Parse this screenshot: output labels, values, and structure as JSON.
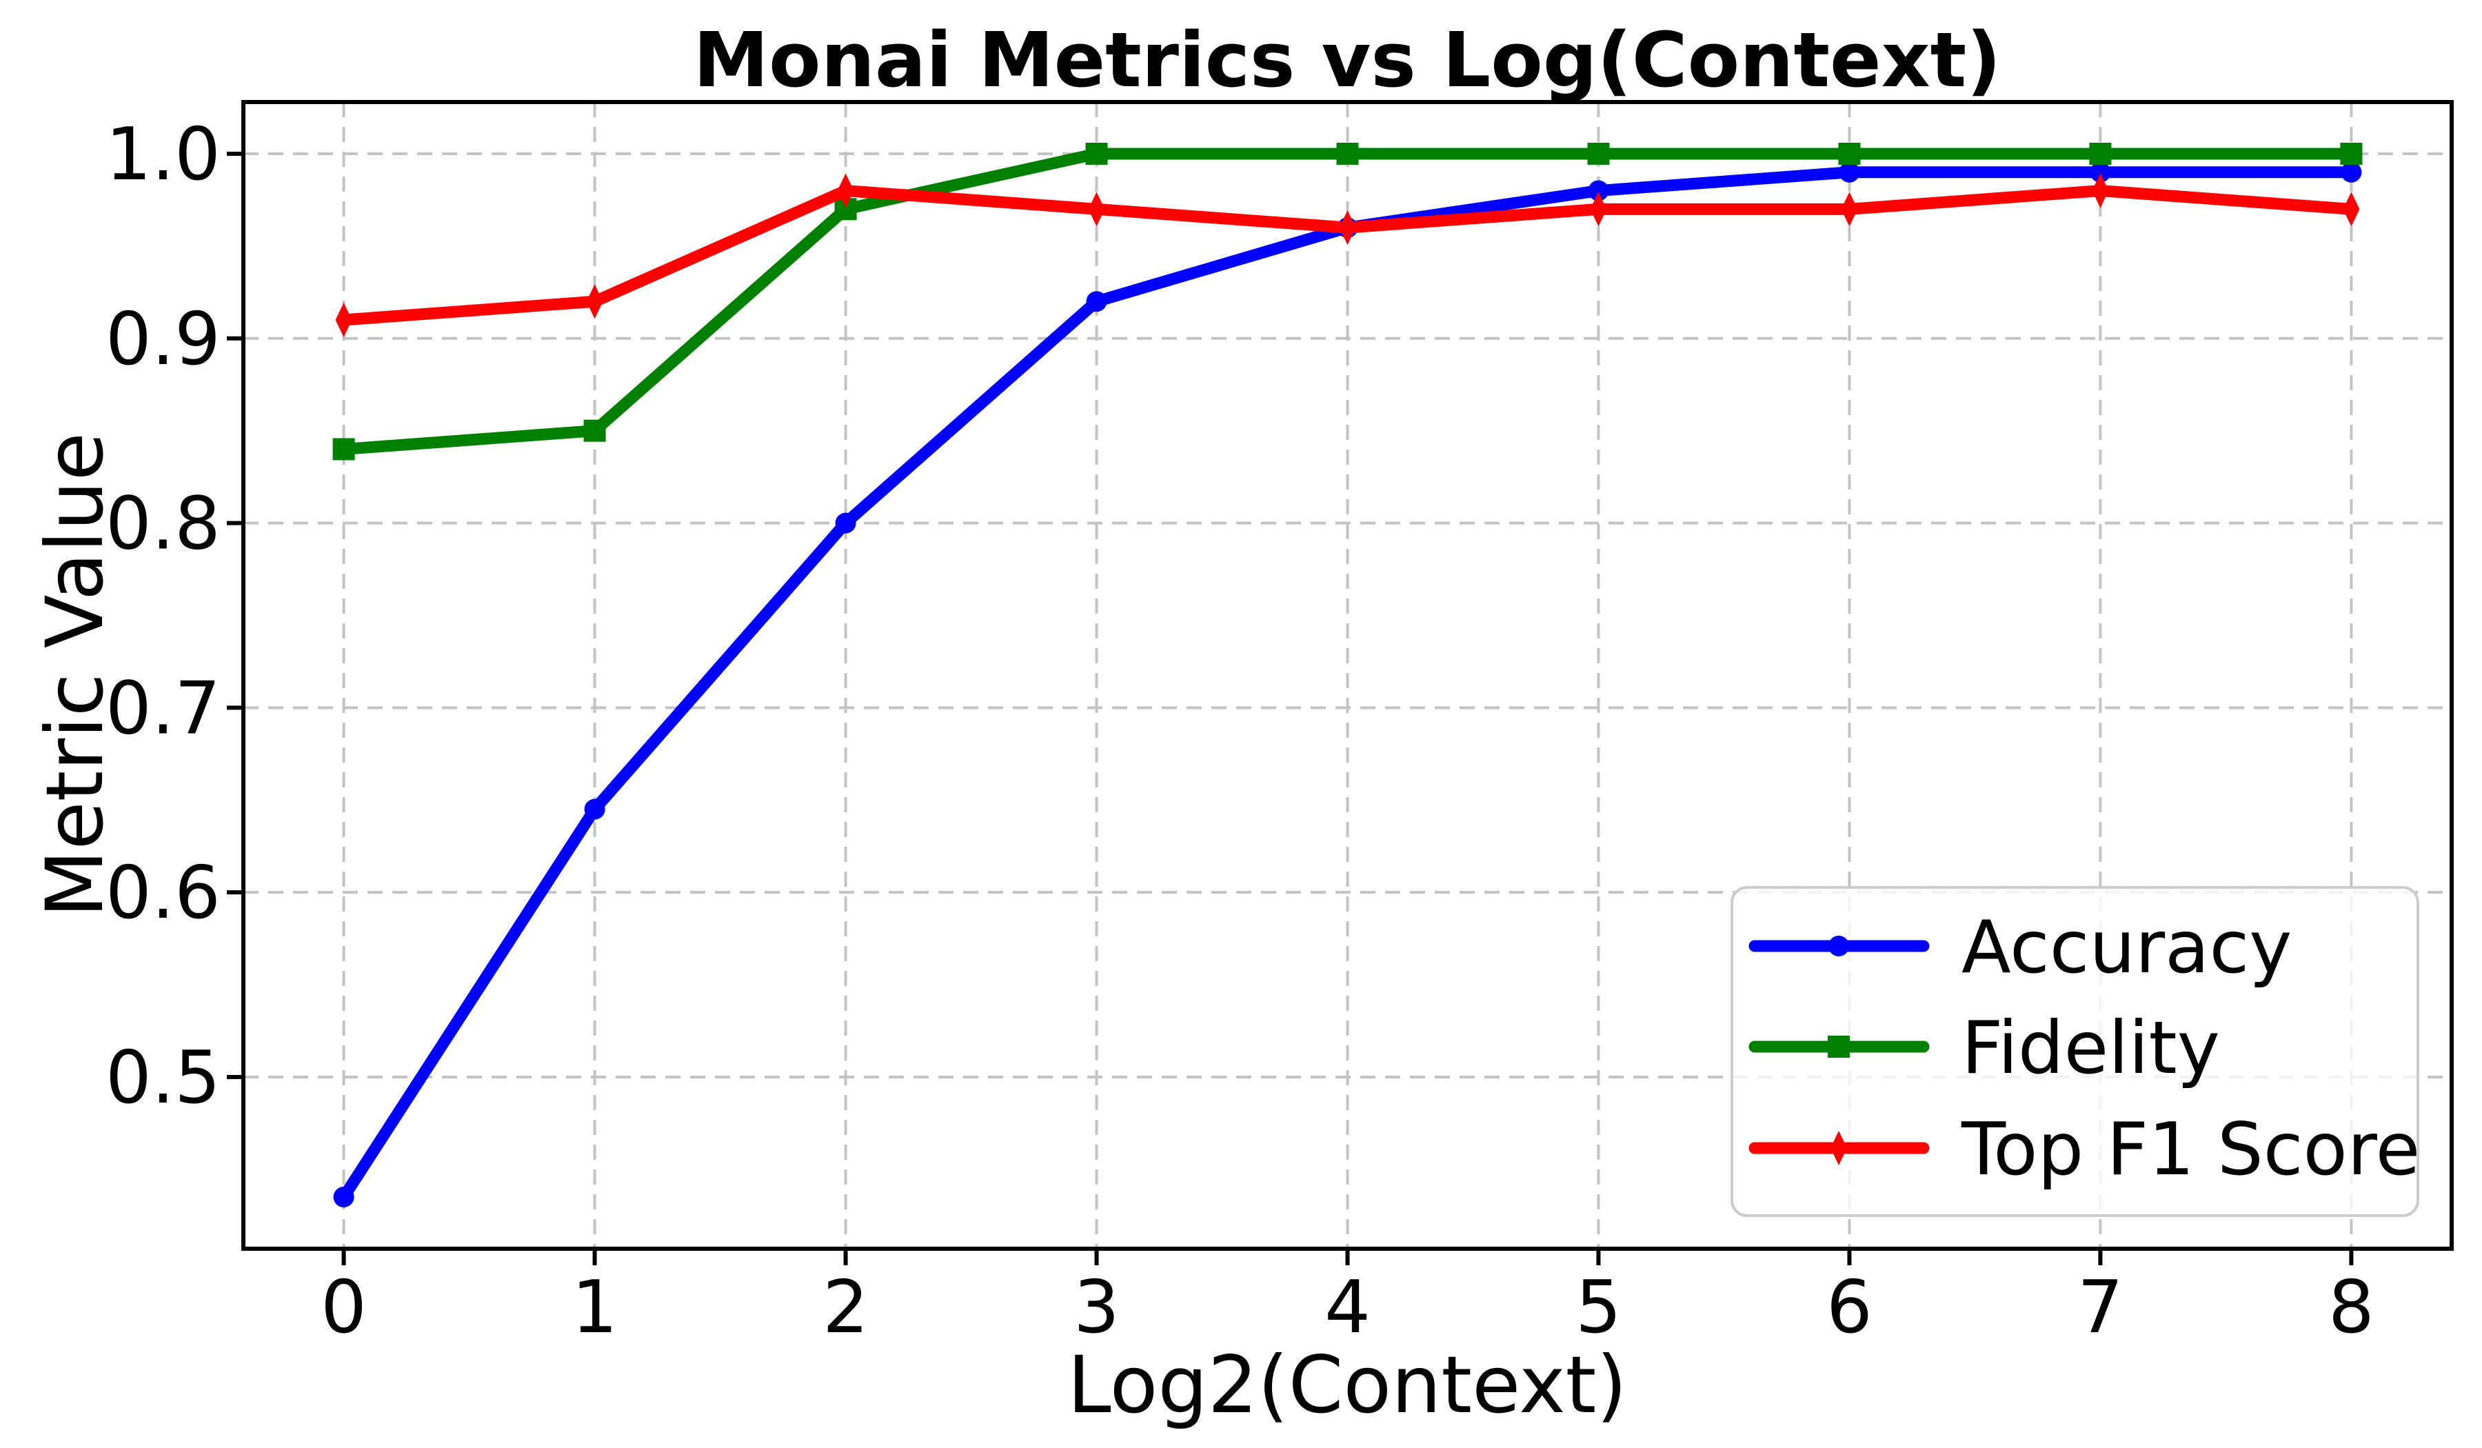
{
  "chart_data": {
    "type": "line",
    "title": "Monai Metrics vs Log(Context)",
    "xlabel": "Log2(Context)",
    "ylabel": "Metric Value",
    "x": [
      0,
      1,
      2,
      3,
      4,
      5,
      6,
      7,
      8
    ],
    "xtick_labels": [
      "0",
      "1",
      "2",
      "3",
      "4",
      "5",
      "6",
      "7",
      "8"
    ],
    "ytick_values": [
      0.5,
      0.6,
      0.7,
      0.8,
      0.9,
      1.0
    ],
    "ytick_labels": [
      "0.5",
      "0.6",
      "0.7",
      "0.8",
      "0.9",
      "1.0"
    ],
    "xlim": [
      -0.4,
      8.4
    ],
    "ylim": [
      0.407,
      1.028
    ],
    "grid": true,
    "legend_position": "lower right",
    "series": [
      {
        "name": "Accuracy",
        "color": "#0000ff",
        "marker": "circle",
        "values": [
          0.435,
          0.645,
          0.8,
          0.92,
          0.96,
          0.98,
          0.99,
          0.99,
          0.99
        ]
      },
      {
        "name": "Fidelity",
        "color": "#008000",
        "marker": "square",
        "values": [
          0.84,
          0.85,
          0.97,
          1.0,
          1.0,
          1.0,
          1.0,
          1.0,
          1.0
        ]
      },
      {
        "name": "Top F1 Score",
        "color": "#ff0000",
        "marker": "thin-diamond",
        "values": [
          0.91,
          0.92,
          0.98,
          0.97,
          0.96,
          0.97,
          0.97,
          0.98,
          0.97
        ]
      }
    ],
    "colors": {
      "background": "#ffffff",
      "grid": "#c3c3c3",
      "axes": "#000000",
      "legend_border": "#cccccc",
      "legend_background": "rgba(255,255,255,0.8)"
    }
  }
}
